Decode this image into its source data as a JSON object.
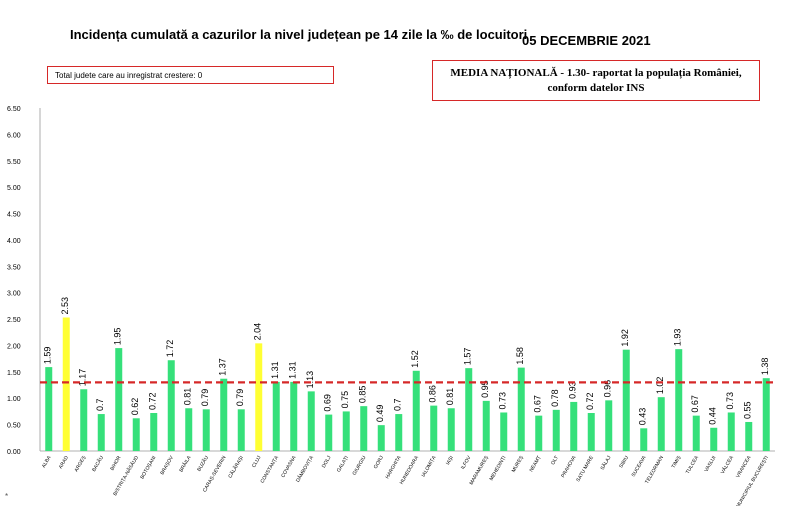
{
  "header": {
    "title": "Incidența cumulată a cazurilor la nivel județean pe 14 zile la ‰ de locuitori",
    "date": "05 DECEMBRIE 2021"
  },
  "notes": {
    "left": "Total judete care au inregistrat crestere: 0",
    "right_line1": "MEDIA NAȚIONALĂ - 1.30-  raportat la populația României,",
    "right_line2": "conform datelor INS"
  },
  "footnote": "*",
  "chart_data": {
    "type": "bar",
    "categories": [
      "ALBA",
      "ARAD",
      "ARGEȘ",
      "BACĂU",
      "BIHOR",
      "BISTRIȚA-NĂSĂUD",
      "BOTOȘANI",
      "BRAȘOV",
      "BRĂILA",
      "BUZĂU",
      "CARAȘ-SEVERIN",
      "CĂLĂRAȘI",
      "CLUJ",
      "CONSTANȚA",
      "COVASNA",
      "DÂMBOVIȚA",
      "DOLJ",
      "GALAȚI",
      "GIURGIU",
      "GORJ",
      "HARGHITA",
      "HUNEDOARA",
      "IALOMIȚA",
      "IAȘI",
      "ILFOV",
      "MARAMUREȘ",
      "MEHEDINȚI",
      "MUREȘ",
      "NEAMȚ",
      "OLT",
      "PRAHOVA",
      "SATU MARE",
      "SĂLAJ",
      "SIBIU",
      "SUCEAVA",
      "TELEORMAN",
      "TIMIȘ",
      "TULCEA",
      "VASLUI",
      "VÂLCEA",
      "VRANCEA",
      "MUNICIPIUL BUCUREȘTI"
    ],
    "values": [
      1.59,
      2.53,
      1.17,
      0.7,
      1.95,
      0.62,
      0.72,
      1.72,
      0.81,
      0.79,
      1.37,
      0.79,
      2.04,
      1.31,
      1.31,
      1.13,
      0.69,
      0.75,
      0.85,
      0.49,
      0.7,
      1.52,
      0.86,
      0.81,
      1.57,
      0.95,
      0.73,
      1.58,
      0.67,
      0.78,
      0.93,
      0.72,
      0.96,
      1.92,
      0.43,
      1.02,
      1.93,
      0.67,
      0.44,
      0.73,
      0.55,
      1.38
    ],
    "value_labels": [
      "1.59",
      "2.53",
      "1.17",
      "0.7",
      "1.95",
      "0.62",
      "0.72",
      "1.72",
      "0.81",
      "0.79",
      "1.37",
      "0.79",
      "2.04",
      "1.31",
      "1.31",
      "1.13",
      "0.69",
      "0.75",
      "0.85",
      "0.49",
      "0.7",
      "1.52",
      "0.86",
      "0.81",
      "1.57",
      "0.95",
      "0.73",
      "1.58",
      "0.67",
      "0.78",
      "0.93",
      "0.72",
      "0.96",
      "1.92",
      "0.43",
      "1.02",
      "1.93",
      "0.67",
      "0.44",
      "0.73",
      "0.55",
      "1.38"
    ],
    "highlighted": [
      "ARAD",
      "CLUJ"
    ],
    "colors": {
      "bar": "#35e07a",
      "highlight": "#ffff33",
      "average_line": "#d62828"
    },
    "average": 1.3,
    "ylim": [
      0,
      6.5
    ],
    "yticks": [
      "0.00",
      "0.50",
      "1.00",
      "1.50",
      "2.00",
      "2.50",
      "3.00",
      "3.50",
      "4.00",
      "4.50",
      "5.00",
      "5.50",
      "6.00",
      "6.50"
    ],
    "grid": false,
    "legend": "none"
  }
}
